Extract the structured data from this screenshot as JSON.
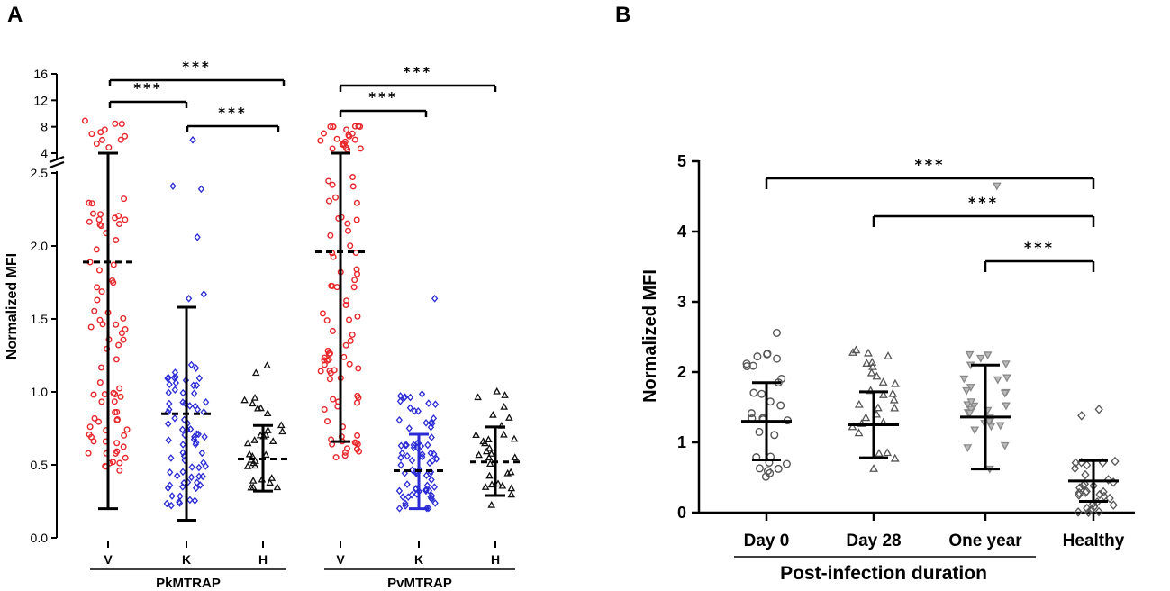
{
  "figure": {
    "panel_a_letter": "A",
    "panel_b_letter": "B"
  },
  "chart_data": [
    {
      "panel": "A",
      "type": "scatter",
      "ylabel": "Normalized MFI",
      "ylim_lower": [
        0,
        2.5
      ],
      "ylim_upper": [
        4,
        16
      ],
      "y_ticks_lower": [
        "0.0",
        "0.5",
        "1.0",
        "1.5",
        "2.0",
        "2.5"
      ],
      "y_ticks_upper": [
        "4",
        "8",
        "12",
        "16"
      ],
      "groups": [
        {
          "name": "PkMTRAP",
          "categories": [
            "V",
            "K",
            "H"
          ]
        },
        {
          "name": "PvMTRAP",
          "categories": [
            "V",
            "K",
            "H"
          ]
        }
      ],
      "series": [
        {
          "group": "PkMTRAP",
          "category": "V",
          "color": "#e8262b",
          "marker": "circle",
          "n": 75,
          "low": 0.45,
          "high": 2.33,
          "n_upper": 11,
          "mean": 1.89,
          "sd_low": 0.2,
          "sd_high": 3.2
        },
        {
          "group": "PkMTRAP",
          "category": "K",
          "color": "#2a2ad6",
          "marker": "diamond",
          "n": 75,
          "low": 0.22,
          "high": 1.22,
          "outliers": [
            1.64,
            1.67,
            2.06,
            2.39,
            2.41,
            6.0
          ],
          "mean": 0.85,
          "sd_low": 0.12,
          "sd_high": 1.58
        },
        {
          "group": "PkMTRAP",
          "category": "H",
          "color": "#111111",
          "marker": "triangle",
          "n": 30,
          "low": 0.32,
          "high": 0.98,
          "outliers": [
            1.13,
            1.18
          ],
          "mean": 0.54,
          "sd_low": 0.32,
          "sd_high": 0.77
        },
        {
          "group": "PvMTRAP",
          "category": "V",
          "color": "#e8262b",
          "marker": "circle",
          "n": 75,
          "low": 0.55,
          "high": 2.5,
          "n_upper": 22,
          "mean": 1.96,
          "sd_low": 0.66,
          "sd_high": 3.3
        },
        {
          "group": "PvMTRAP",
          "category": "K",
          "color": "#2a2ad6",
          "marker": "diamond",
          "n": 75,
          "low": 0.2,
          "high": 1.0,
          "outliers": [
            1.64
          ],
          "mean": 0.46,
          "sd_low": 0.2,
          "sd_high": 0.71
        },
        {
          "group": "PvMTRAP",
          "category": "H",
          "color": "#111111",
          "marker": "triangle",
          "n": 30,
          "low": 0.22,
          "high": 1.03,
          "mean": 0.52,
          "sd_low": 0.29,
          "sd_high": 0.76
        }
      ],
      "annotations": [
        {
          "label": "***",
          "from": "PkMTRAP V",
          "to": "PkMTRAP K"
        },
        {
          "label": "***",
          "from": "PkMTRAP V",
          "to": "PkMTRAP H"
        },
        {
          "label": "***",
          "from": "PkMTRAP K",
          "to": "PkMTRAP H"
        },
        {
          "label": "***",
          "from": "PvMTRAP V",
          "to": "PvMTRAP K"
        },
        {
          "label": "***",
          "from": "PvMTRAP V",
          "to": "PvMTRAP H"
        }
      ]
    },
    {
      "panel": "B",
      "type": "scatter",
      "ylabel": "Normalized MFI",
      "xlabel": "Post-infection duration",
      "ylim": [
        0,
        5
      ],
      "y_ticks": [
        "0",
        "1",
        "2",
        "3",
        "4",
        "5"
      ],
      "categories": [
        "Day 0",
        "Day 28",
        "One year",
        "Healthy"
      ],
      "series": [
        {
          "name": "Day 0",
          "marker": "circle",
          "color": "#555555",
          "fill": "none",
          "n": 30,
          "low": 0.5,
          "high": 2.62,
          "mean": 1.3,
          "sd_low": 0.75,
          "sd_high": 1.85
        },
        {
          "name": "Day 28",
          "marker": "triangle",
          "color": "#555555",
          "fill": "none",
          "n": 28,
          "low": 0.55,
          "high": 2.35,
          "mean": 1.25,
          "sd_low": 0.78,
          "sd_high": 1.72
        },
        {
          "name": "One year",
          "marker": "triangle-down",
          "color": "#888888",
          "fill": "#bbbbbb",
          "n": 30,
          "low": 0.6,
          "high": 2.27,
          "outliers": [
            4.65
          ],
          "mean": 1.36,
          "sd_low": 0.62,
          "sd_high": 2.1
        },
        {
          "name": "Healthy",
          "marker": "diamond",
          "color": "#555555",
          "fill": "none",
          "n": 30,
          "low": 0.0,
          "high": 0.73,
          "outliers": [
            1.38,
            1.47
          ],
          "mean": 0.45,
          "sd_low": 0.16,
          "sd_high": 0.74
        }
      ],
      "annotations": [
        {
          "label": "***",
          "from": "Day 0",
          "to": "Healthy"
        },
        {
          "label": "***",
          "from": "Day 28",
          "to": "Healthy"
        },
        {
          "label": "***",
          "from": "One year",
          "to": "Healthy"
        }
      ]
    }
  ]
}
